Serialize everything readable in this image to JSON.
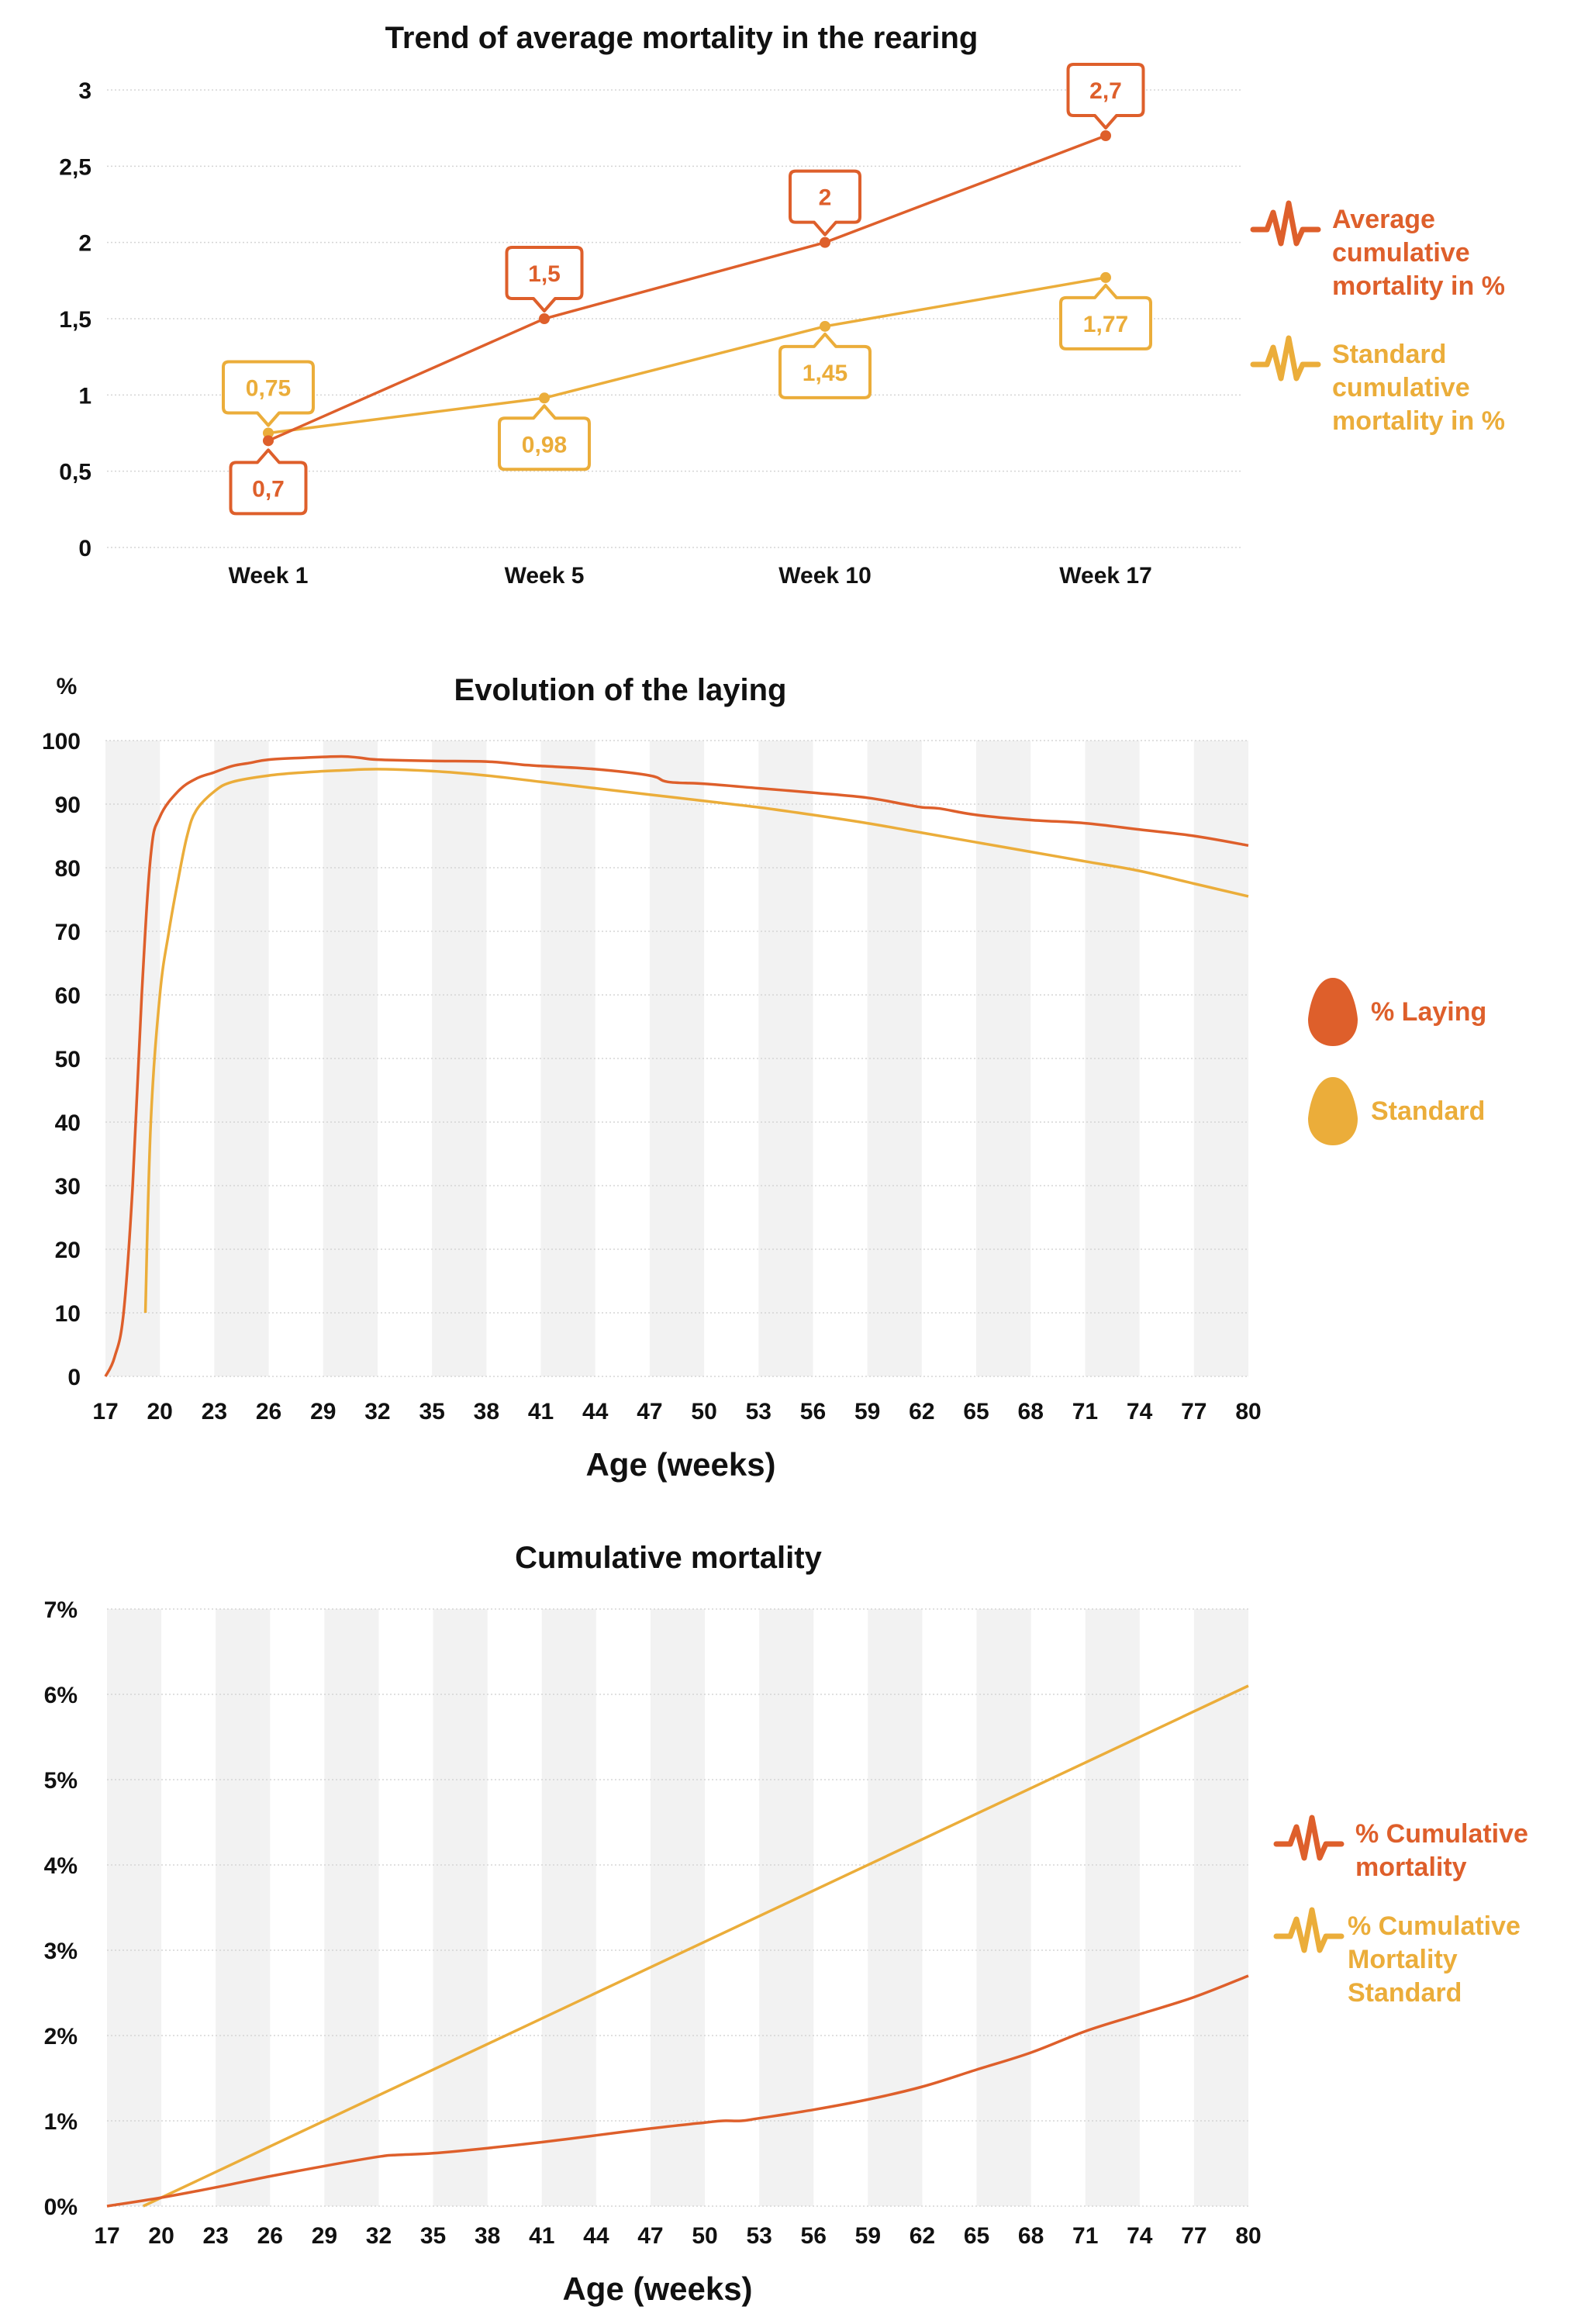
{
  "colors": {
    "primary": "#de5f2b",
    "standard": "#ebad3a",
    "band": "#f2f2f2",
    "grid": "#d5d5d5",
    "text": "#111111"
  },
  "chart_data": [
    {
      "type": "line",
      "title": "Trend of average mortality in the rearing",
      "categories": [
        "Week 1",
        "Week 5",
        "Week 10",
        "Week 17"
      ],
      "ylim": [
        0,
        3
      ],
      "y_ticks": [
        "0",
        "0,5",
        "1",
        "1,5",
        "2",
        "2,5",
        "3"
      ],
      "grid": true,
      "legend_position": "right",
      "legend_icon": "heartbeat-icon",
      "series": [
        {
          "name": "Average cumulative mortality in %",
          "legend_lines": [
            "Average",
            "cumulative",
            "mortality in %"
          ],
          "color": "#de5f2b",
          "values": [
            0.7,
            1.5,
            2.0,
            2.7
          ],
          "labels": [
            "0,7",
            "1,5",
            "2",
            "2,7"
          ]
        },
        {
          "name": "Standard cumulative mortality in %",
          "legend_lines": [
            "Standard",
            "cumulative",
            "mortality in %"
          ],
          "color": "#ebad3a",
          "values": [
            0.75,
            0.98,
            1.45,
            1.77
          ],
          "labels": [
            "0,75",
            "0,98",
            "1,45",
            "1,77"
          ]
        }
      ]
    },
    {
      "type": "line",
      "title": "Evolution of the laying",
      "ylabel": "%",
      "xlabel": "Age (weeks)",
      "xlim": [
        17,
        80
      ],
      "ylim": [
        0,
        100
      ],
      "x_ticks": [
        "17",
        "20",
        "23",
        "26",
        "29",
        "32",
        "35",
        "38",
        "41",
        "44",
        "47",
        "50",
        "53",
        "56",
        "59",
        "62",
        "65",
        "68",
        "71",
        "74",
        "77",
        "80"
      ],
      "y_ticks": [
        "0",
        "10",
        "20",
        "30",
        "40",
        "50",
        "60",
        "70",
        "80",
        "90",
        "100"
      ],
      "grid": true,
      "legend_position": "right",
      "legend_icon": "egg-icon",
      "series": [
        {
          "name": "% Laying",
          "color": "#de5f2b",
          "x": [
            17,
            17.5,
            18,
            18.5,
            19,
            19.5,
            20,
            21,
            22,
            23,
            24,
            25,
            26,
            28,
            30,
            31,
            32,
            35,
            38,
            40,
            41,
            44,
            47,
            48,
            50,
            53,
            56,
            59,
            61,
            62,
            63,
            65,
            68,
            71,
            74,
            77,
            80
          ],
          "y": [
            0,
            3,
            10,
            30,
            60,
            82,
            88,
            92,
            94,
            95,
            96,
            96.5,
            97,
            97.3,
            97.5,
            97.3,
            97,
            96.8,
            96.7,
            96.2,
            96,
            95.5,
            94.5,
            93.5,
            93.2,
            92.5,
            91.8,
            91,
            90,
            89.5,
            89.3,
            88.3,
            87.5,
            87,
            86,
            85,
            83.5
          ]
        },
        {
          "name": "Standard",
          "color": "#ebad3a",
          "x": [
            19.2,
            19.5,
            20,
            20.5,
            21,
            21.5,
            22,
            23,
            24,
            26,
            28,
            30,
            32,
            35,
            38,
            41,
            44,
            47,
            50,
            53,
            56,
            59,
            62,
            65,
            68,
            71,
            74,
            77,
            80
          ],
          "y": [
            10,
            40,
            60,
            70,
            78,
            85,
            89,
            92,
            93.5,
            94.5,
            95,
            95.3,
            95.5,
            95.2,
            94.5,
            93.5,
            92.5,
            91.5,
            90.5,
            89.5,
            88.3,
            87,
            85.5,
            84,
            82.5,
            81,
            79.5,
            77.5,
            75.5
          ]
        }
      ]
    },
    {
      "type": "line",
      "title": "Cumulative mortality",
      "xlabel": "Age (weeks)",
      "xlim": [
        17,
        80
      ],
      "ylim": [
        0,
        7
      ],
      "x_ticks": [
        "17",
        "20",
        "23",
        "26",
        "29",
        "32",
        "35",
        "38",
        "41",
        "44",
        "47",
        "50",
        "53",
        "56",
        "59",
        "62",
        "65",
        "68",
        "71",
        "74",
        "77",
        "80"
      ],
      "y_ticks": [
        "0%",
        "1%",
        "2%",
        "3%",
        "4%",
        "5%",
        "6%",
        "7%"
      ],
      "grid": true,
      "legend_position": "right",
      "legend_icon": "heartbeat-icon",
      "series": [
        {
          "name": "% Cumulative mortality",
          "legend_lines": [
            "% Cumulative",
            "mortality"
          ],
          "color": "#de5f2b",
          "x": [
            17,
            20,
            23,
            26,
            29,
            32,
            33,
            35,
            38,
            41,
            44,
            47,
            50,
            51,
            52,
            53,
            56,
            59,
            62,
            65,
            68,
            71,
            74,
            77,
            80
          ],
          "y": [
            0,
            0.1,
            0.22,
            0.35,
            0.47,
            0.58,
            0.6,
            0.62,
            0.68,
            0.75,
            0.83,
            0.91,
            0.98,
            1.0,
            1.0,
            1.03,
            1.13,
            1.25,
            1.4,
            1.6,
            1.8,
            2.05,
            2.25,
            2.45,
            2.7
          ]
        },
        {
          "name": "% Cumulative Mortality Standard",
          "legend_lines": [
            "% Cumulative",
            "Mortality",
            "Standard"
          ],
          "color": "#ebad3a",
          "x": [
            19,
            80
          ],
          "y": [
            0,
            6.1
          ]
        }
      ]
    }
  ]
}
